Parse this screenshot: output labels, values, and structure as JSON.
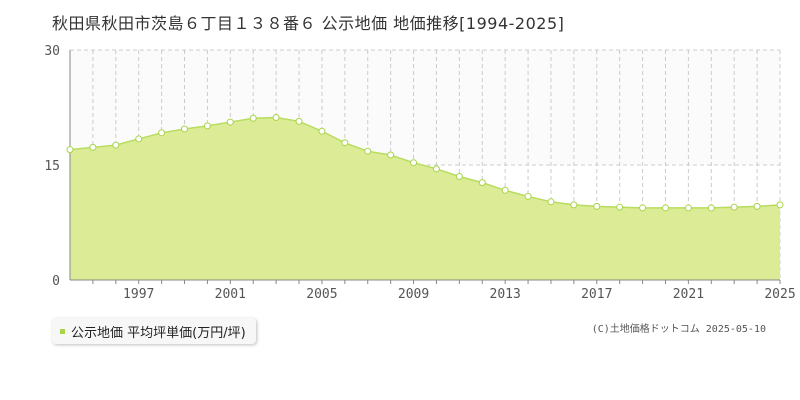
{
  "title": "秋田県秋田市茨島６丁目１３８番６ 公示地価 地価推移[1994-2025]",
  "legend": {
    "label": "公示地価 平均坪単価(万円/坪)"
  },
  "copyright": "(C)土地価格ドットコム 2025-05-10",
  "colors": {
    "fill": "#dcec96",
    "line": "#b8dc5e",
    "marker_fill": "#ffffff",
    "marker_stroke": "#a8d44a",
    "swatch": "#a8d44a"
  },
  "chart_data": {
    "type": "area",
    "title": "",
    "xlabel": "",
    "ylabel": "",
    "ylim": [
      0,
      30
    ],
    "xlim": [
      1994,
      2025
    ],
    "y_ticks": [
      0,
      15,
      30
    ],
    "x_ticks": [
      1997,
      2001,
      2005,
      2009,
      2013,
      2017,
      2021,
      2025
    ],
    "grid": true,
    "legend_position": "bottom-left",
    "series": [
      {
        "name": "公示地価 平均坪単価(万円/坪)",
        "x": [
          1994,
          1995,
          1996,
          1997,
          1998,
          1999,
          2000,
          2001,
          2002,
          2003,
          2004,
          2005,
          2006,
          2007,
          2008,
          2009,
          2010,
          2011,
          2012,
          2013,
          2014,
          2015,
          2016,
          2017,
          2018,
          2019,
          2020,
          2021,
          2022,
          2023,
          2024,
          2025
        ],
        "values": [
          17.0,
          17.3,
          17.6,
          18.4,
          19.2,
          19.7,
          20.1,
          20.6,
          21.1,
          21.2,
          20.7,
          19.4,
          17.9,
          16.8,
          16.3,
          15.3,
          14.5,
          13.5,
          12.7,
          11.7,
          10.9,
          10.2,
          9.8,
          9.6,
          9.5,
          9.4,
          9.4,
          9.4,
          9.4,
          9.5,
          9.6,
          9.8
        ]
      }
    ]
  }
}
